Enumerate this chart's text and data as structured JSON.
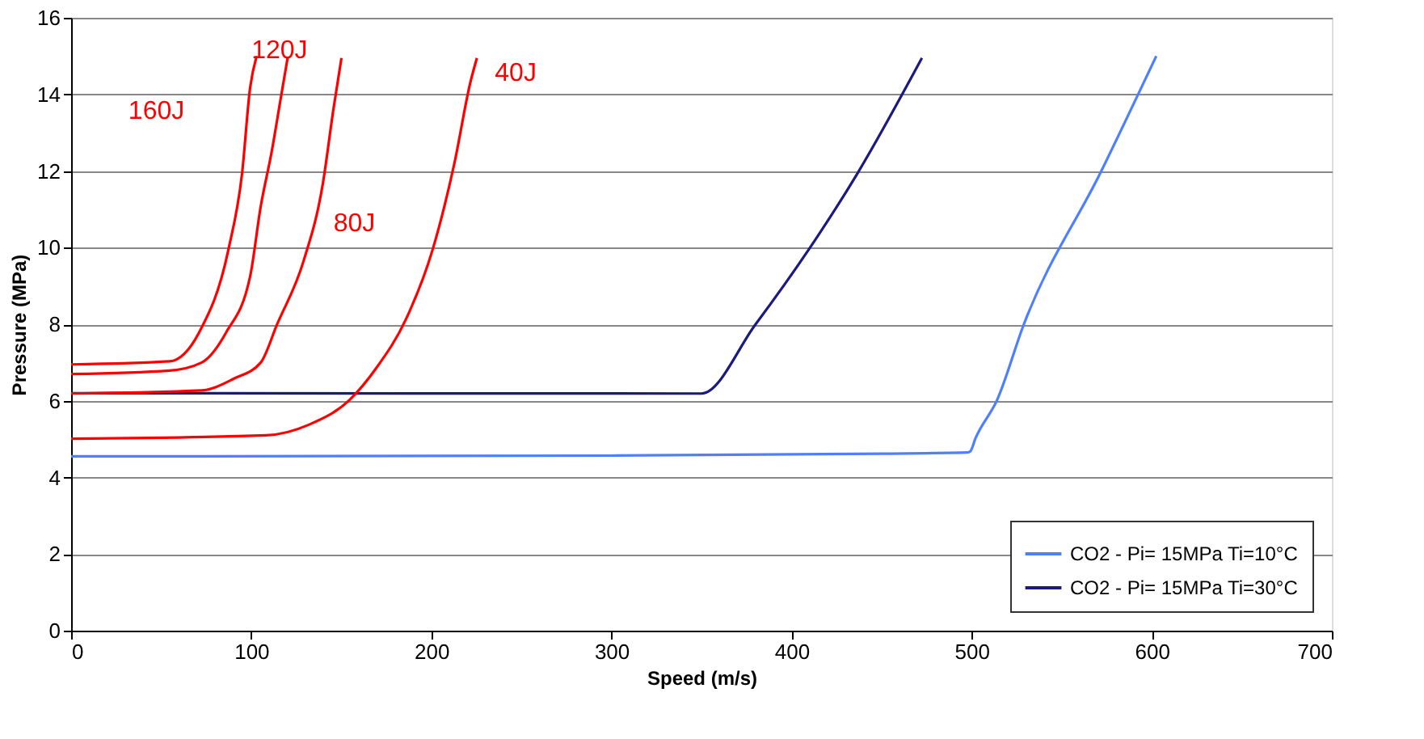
{
  "chart_data": {
    "type": "line",
    "xlabel": "Speed (m/s)",
    "ylabel": "Pressure (MPa)",
    "xlim": [
      0,
      700
    ],
    "xticks": [
      0,
      100,
      200,
      300,
      400,
      500,
      600,
      700
    ],
    "ylim": [
      0,
      16
    ],
    "yticks": [
      0,
      2,
      4,
      6,
      8,
      10,
      12,
      14,
      16
    ],
    "grid": "y",
    "legend": "bottom right",
    "marker": "none",
    "line_style": "solid",
    "series": [
      {
        "name": "160J",
        "color": "#ff0000",
        "x": [
          0,
          54.6,
          71,
          87.4,
          94.9,
          99.4,
          103
        ],
        "values": [
          6.95,
          7.03,
          7.78,
          9.96,
          11.93,
          14.18,
          15
        ]
      },
      {
        "name": "120J",
        "color": "#ff0000",
        "x": [
          0,
          54.6,
          72.5,
          86,
          99.4,
          105.3,
          111.3,
          116.4,
          120.2
        ],
        "values": [
          6.7,
          6.79,
          7.0,
          7.78,
          9.25,
          11.08,
          12.49,
          13.9,
          14.95
        ]
      },
      {
        "name": "80J",
        "color": "#ff0000",
        "x": [
          0,
          72.5,
          90.4,
          105.3,
          114.3,
          129.2,
          139.7,
          145.6,
          150.1
        ],
        "values": [
          6.19,
          6.27,
          6.58,
          7.0,
          7.99,
          9.67,
          11.65,
          13.6,
          14.95
        ]
      },
      {
        "name": "40J",
        "color": "#ff0000",
        "x": [
          0,
          108.3,
          132.2,
          154.5,
          169.5,
          185.9,
          200.8,
          212.8,
          221.7,
          225.3
        ],
        "values": [
          5.01,
          5.1,
          5.38,
          6.02,
          6.86,
          8.13,
          9.96,
          12.2,
          14.32,
          14.95
        ]
      },
      {
        "name": "CO2 - Pi= 15MPa Ti=10°C",
        "color": "#4d7fff",
        "x": [
          0,
          300,
          450,
          497,
          499.2,
          502.2,
          514.1,
          529,
          572,
          602.5
        ],
        "values": [
          4.55,
          4.57,
          4.62,
          4.65,
          4.68,
          5.03,
          6.02,
          8,
          12,
          15
        ]
      },
      {
        "name": "CO2 - Pi= 15MPa Ti=30°C",
        "color": "#1a1a80",
        "x": [
          0,
          350,
          379.9,
          409.7,
          436.5,
          472.4
        ],
        "values": [
          6.2,
          6.19,
          7.99,
          9.96,
          11.93,
          14.95
        ]
      }
    ]
  }
}
